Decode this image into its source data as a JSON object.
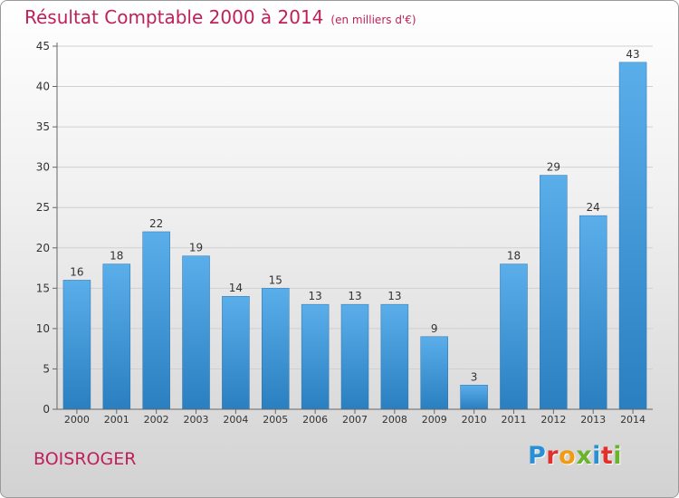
{
  "header": {
    "title": "Résultat Comptable 2000 à 2014",
    "subtitle": "(en milliers d'€)"
  },
  "footer": {
    "commune": "BOISROGER",
    "logo_letters": [
      "P",
      "r",
      "o",
      "x",
      "i",
      "t",
      "i"
    ],
    "logo_colors": [
      "#2a8fd6",
      "#e2312a",
      "#f29b11",
      "#6ab42d",
      "#2a8fd6",
      "#e2312a",
      "#6ab42d"
    ]
  },
  "chart_data": {
    "type": "bar",
    "title": "Résultat Comptable 2000 à 2014",
    "subtitle": "(en milliers d'€)",
    "xlabel": "",
    "ylabel": "",
    "categories": [
      "2000",
      "2001",
      "2002",
      "2003",
      "2004",
      "2005",
      "2006",
      "2007",
      "2008",
      "2009",
      "2010",
      "2011",
      "2012",
      "2013",
      "2014"
    ],
    "values": [
      16,
      18,
      22,
      19,
      14,
      15,
      13,
      13,
      13,
      9,
      3,
      18,
      29,
      24,
      43
    ],
    "ylim": [
      0,
      45
    ],
    "yticks": [
      0,
      5,
      10,
      15,
      20,
      25,
      30,
      35,
      40,
      45
    ],
    "grid": true,
    "colors": {
      "bar_top": "#5aaeea",
      "bar_bottom": "#2a7fc0",
      "grid": "#d0d0d0",
      "axis": "#666666",
      "label": "#333333"
    }
  }
}
